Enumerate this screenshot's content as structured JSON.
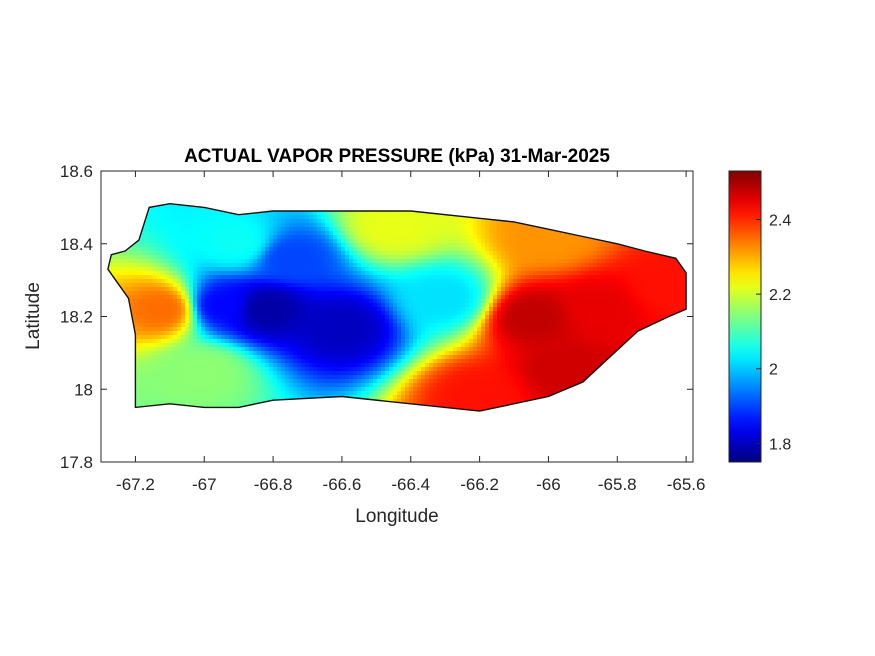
{
  "chart_data": {
    "type": "heatmap",
    "title": "ACTUAL VAPOR PRESSURE (kPa) 31-Mar-2025",
    "xlabel": "Longitude",
    "ylabel": "Latitude",
    "xlim": [
      -67.3,
      -65.58
    ],
    "ylim": [
      17.8,
      18.6
    ],
    "x_ticks": [
      -67.2,
      -67,
      -66.8,
      -66.6,
      -66.4,
      -66.2,
      -66,
      -65.8,
      -65.6
    ],
    "x_tick_labels": [
      "-67.2",
      "-67",
      "-66.8",
      "-66.6",
      "-66.4",
      "-66.2",
      "-66",
      "-65.8",
      "-65.6"
    ],
    "y_ticks": [
      17.8,
      18,
      18.2,
      18.4,
      18.6
    ],
    "y_tick_labels": [
      "17.8",
      "18",
      "18.2",
      "18.4",
      "18.6"
    ],
    "colorbar": {
      "colormap": "jet",
      "range": [
        1.75,
        2.53
      ],
      "ticks": [
        1.8,
        2,
        2.2,
        2.4
      ],
      "tick_labels": [
        "1.8",
        "2",
        "2.2",
        "2.4"
      ]
    },
    "grid": false,
    "region_outline": [
      [
        -67.27,
        18.37
      ],
      [
        -67.23,
        18.38
      ],
      [
        -67.19,
        18.41
      ],
      [
        -67.16,
        18.5
      ],
      [
        -67.1,
        18.51
      ],
      [
        -67.0,
        18.5
      ],
      [
        -66.9,
        18.48
      ],
      [
        -66.8,
        18.49
      ],
      [
        -66.6,
        18.49
      ],
      [
        -66.4,
        18.49
      ],
      [
        -66.2,
        18.47
      ],
      [
        -66.1,
        18.46
      ],
      [
        -66.0,
        18.44
      ],
      [
        -65.9,
        18.42
      ],
      [
        -65.8,
        18.4
      ],
      [
        -65.72,
        18.38
      ],
      [
        -65.63,
        18.36
      ],
      [
        -65.6,
        18.32
      ],
      [
        -65.6,
        18.22
      ],
      [
        -65.65,
        18.2
      ],
      [
        -65.74,
        18.16
      ],
      [
        -65.82,
        18.09
      ],
      [
        -65.9,
        18.02
      ],
      [
        -66.0,
        17.98
      ],
      [
        -66.2,
        17.94
      ],
      [
        -66.4,
        17.96
      ],
      [
        -66.6,
        17.98
      ],
      [
        -66.8,
        17.97
      ],
      [
        -66.9,
        17.95
      ],
      [
        -67.0,
        17.95
      ],
      [
        -67.1,
        17.96
      ],
      [
        -67.2,
        17.95
      ],
      [
        -67.2,
        18.05
      ],
      [
        -67.2,
        18.15
      ],
      [
        -67.22,
        18.25
      ],
      [
        -67.28,
        18.33
      ]
    ],
    "field_centers": [
      {
        "lon": -66.82,
        "lat": 18.22,
        "value": 1.78
      },
      {
        "lon": -66.6,
        "lat": 18.17,
        "value": 1.8
      },
      {
        "lon": -66.95,
        "lat": 18.23,
        "value": 1.85
      },
      {
        "lon": -66.75,
        "lat": 18.36,
        "value": 1.9
      },
      {
        "lon": -66.3,
        "lat": 18.25,
        "value": 2.02
      },
      {
        "lon": -66.9,
        "lat": 18.4,
        "value": 2.05
      },
      {
        "lon": -67.12,
        "lat": 18.22,
        "value": 2.35
      },
      {
        "lon": -66.05,
        "lat": 18.2,
        "value": 2.48
      },
      {
        "lon": -65.85,
        "lat": 18.22,
        "value": 2.45
      },
      {
        "lon": -66.2,
        "lat": 17.98,
        "value": 2.42
      },
      {
        "lon": -65.95,
        "lat": 18.05,
        "value": 2.47
      },
      {
        "lon": -65.65,
        "lat": 18.28,
        "value": 2.42
      },
      {
        "lon": -66.0,
        "lat": 18.42,
        "value": 2.32
      },
      {
        "lon": -67.0,
        "lat": 18.05,
        "value": 2.15
      },
      {
        "lon": -66.45,
        "lat": 18.45,
        "value": 2.22
      }
    ]
  }
}
